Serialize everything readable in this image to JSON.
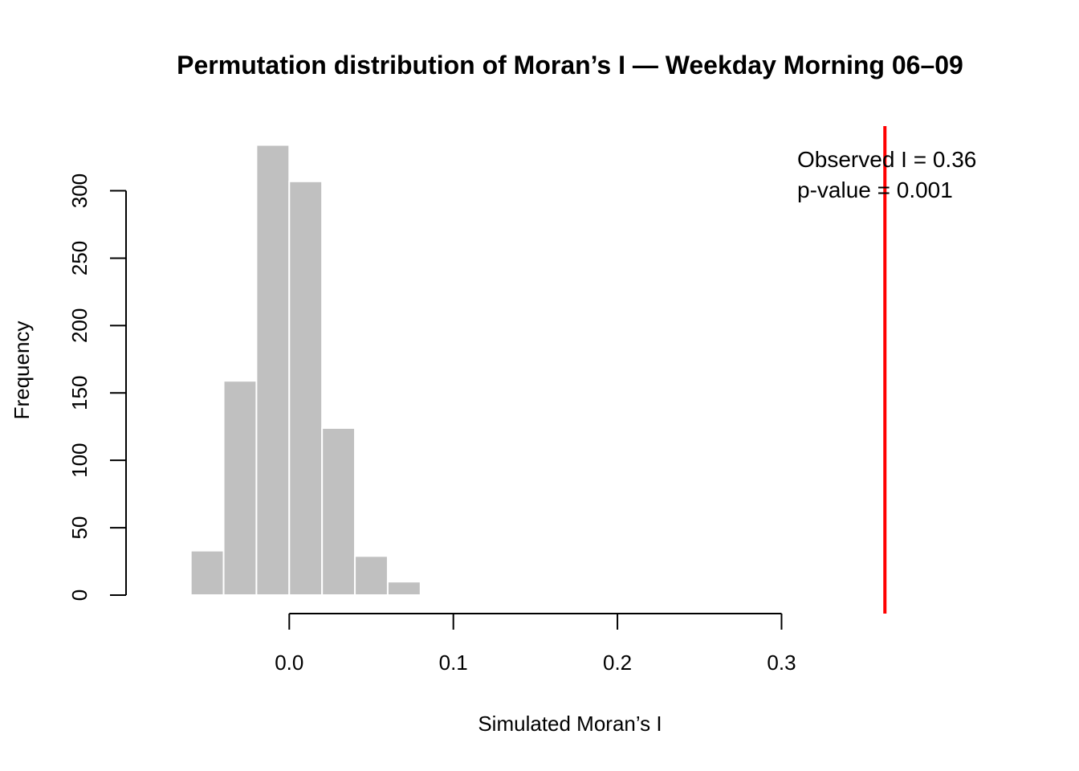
{
  "chart_data": {
    "type": "bar",
    "title": "Permutation distribution of Moran’s I — Weekday Morning 06–09",
    "xlabel": "Simulated Moran’s I",
    "ylabel": "Frequency",
    "bins": [
      {
        "x0": -0.08,
        "x1": -0.06,
        "count": 1
      },
      {
        "x0": -0.06,
        "x1": -0.04,
        "count": 33
      },
      {
        "x0": -0.04,
        "x1": -0.02,
        "count": 159
      },
      {
        "x0": -0.02,
        "x1": 0.0,
        "count": 334
      },
      {
        "x0": 0.0,
        "x1": 0.02,
        "count": 307
      },
      {
        "x0": 0.02,
        "x1": 0.04,
        "count": 124
      },
      {
        "x0": 0.04,
        "x1": 0.06,
        "count": 29
      },
      {
        "x0": 0.06,
        "x1": 0.08,
        "count": 10
      }
    ],
    "xlim": [
      -0.098,
      0.403
    ],
    "ylim": [
      0,
      348
    ],
    "x_ticks": [
      0.0,
      0.1,
      0.2,
      0.3
    ],
    "x_tick_labels": [
      "0.0",
      "0.1",
      "0.2",
      "0.3"
    ],
    "y_ticks": [
      0,
      50,
      100,
      150,
      200,
      250,
      300
    ],
    "y_tick_labels": [
      "0",
      "50",
      "100",
      "150",
      "200",
      "250",
      "300"
    ],
    "observed": 0.363,
    "annotation_lines": [
      "Observed I = 0.36",
      "p-value = 0.001"
    ],
    "bar_color": "#c0c0c0",
    "bar_border_color": "#ffffff",
    "observed_line_color": "#ff0000",
    "grid": false
  }
}
